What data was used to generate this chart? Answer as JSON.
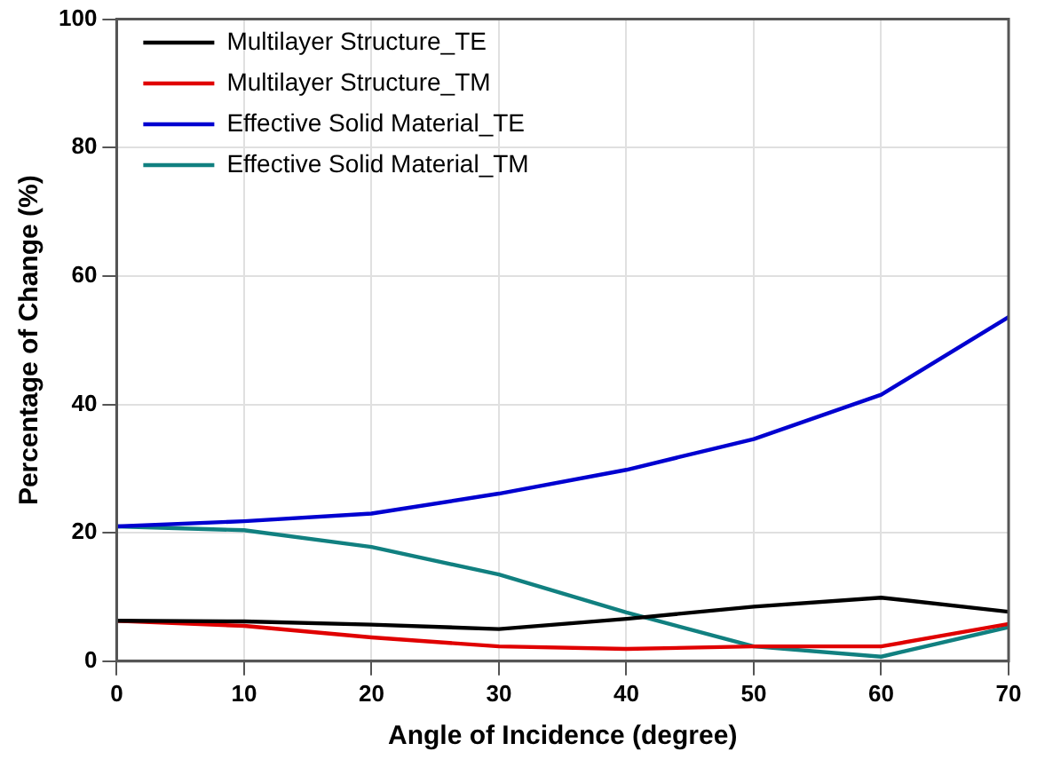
{
  "chart_data": {
    "type": "line",
    "xlabel": "Angle of Incidence (degree)",
    "ylabel": "Percentage of Change (%)",
    "x": [
      0,
      10,
      20,
      30,
      40,
      50,
      60,
      70
    ],
    "xlim": [
      0,
      70
    ],
    "xticks": [
      0,
      10,
      20,
      30,
      40,
      50,
      60,
      70
    ],
    "ylim": [
      0,
      100
    ],
    "yticks": [
      0,
      20,
      40,
      60,
      80,
      100
    ],
    "grid": true,
    "legend": "top left",
    "marker": "none",
    "line_style": "solid",
    "series": [
      {
        "name": "Multilayer Structure_TE",
        "color": "#000000",
        "values": [
          6.3,
          6.2,
          5.7,
          5.0,
          6.6,
          8.5,
          9.9,
          7.7
        ]
      },
      {
        "name": "Multilayer Structure_TM",
        "color": "#e00000",
        "values": [
          6.3,
          5.5,
          3.7,
          2.3,
          1.9,
          2.3,
          2.3,
          5.8
        ]
      },
      {
        "name": "Effective Solid Material_TE",
        "color": "#0000d0",
        "values": [
          21.0,
          21.8,
          23.0,
          26.1,
          29.8,
          34.6,
          41.5,
          53.6
        ]
      },
      {
        "name": "Effective Solid Material_TM",
        "color": "#118080",
        "values": [
          21.0,
          20.4,
          17.8,
          13.5,
          7.6,
          2.3,
          0.7,
          5.3
        ]
      }
    ]
  }
}
